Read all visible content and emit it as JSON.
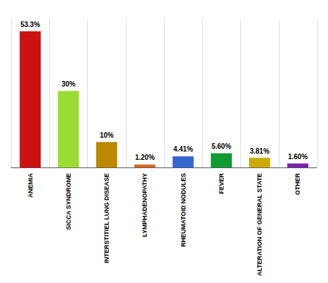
{
  "chart_data": {
    "type": "bar",
    "categories": [
      "ANEMIA",
      "SICCA SYNDROME",
      "INTERSTITIEL LUNG DISEASE",
      "LYMPHADENOPATHY",
      "RHEUMATOID NODULES",
      "FEVER",
      "ALTERATION OF GENERAL STATE",
      "OTHER"
    ],
    "values": [
      53.3,
      30.0,
      10.0,
      1.2,
      4.41,
      5.6,
      3.81,
      1.6
    ],
    "value_labels": [
      "53.3%",
      "30%",
      "10%",
      "1.20%",
      "4.41%",
      "5.60%",
      "3.81%",
      "1.60%"
    ],
    "data_labels": true,
    "colors": [
      "#cc1111",
      "#99dd33",
      "#bb8800",
      "#dd6622",
      "#3366cc",
      "#119933",
      "#ccaa00",
      "#7722aa"
    ],
    "ylim": [
      0,
      58
    ],
    "tick_labels": "x",
    "grid": true
  }
}
